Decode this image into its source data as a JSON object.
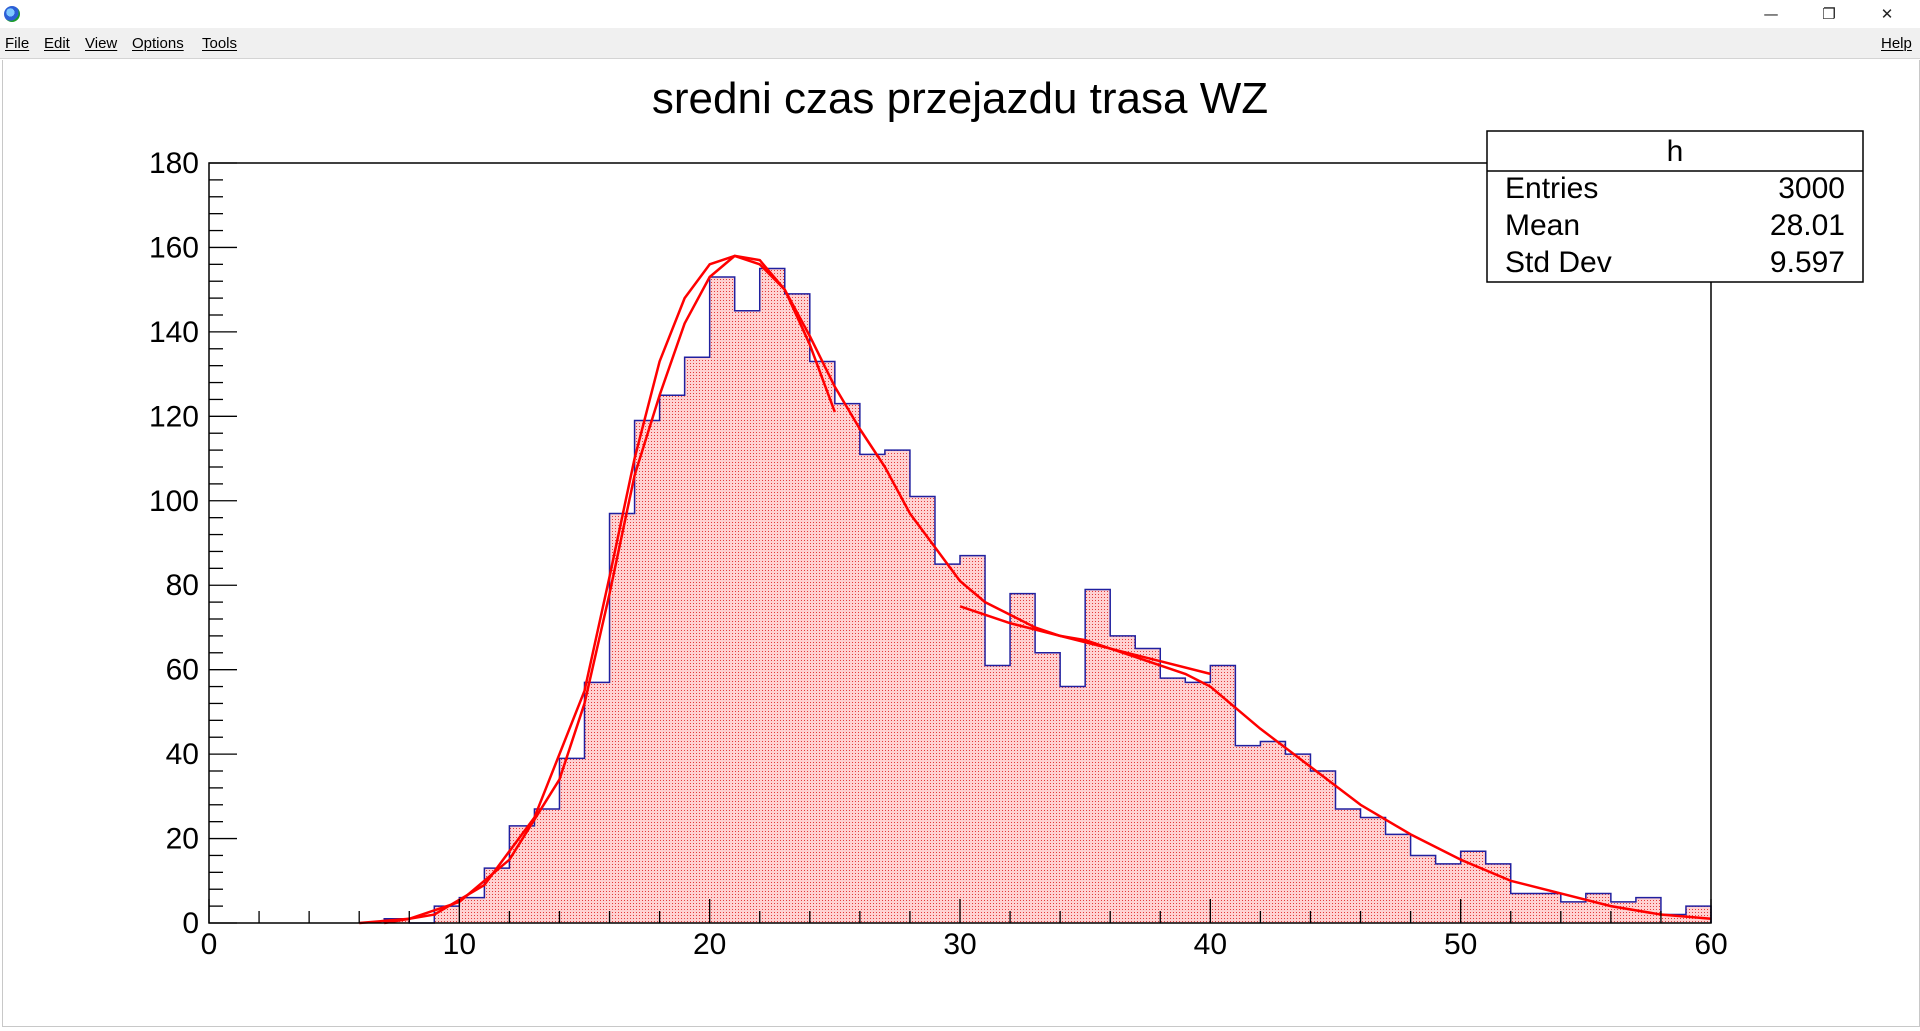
{
  "window": {
    "minimize_label": "—",
    "restore_label": "❐",
    "close_label": "✕"
  },
  "menu": {
    "items": [
      "File",
      "Edit",
      "View",
      "Options",
      "Tools"
    ],
    "help": "Help"
  },
  "stats_box": {
    "name": "h",
    "rows": [
      {
        "label": "Entries",
        "value": "3000"
      },
      {
        "label": "Mean",
        "value": "28.01"
      },
      {
        "label": "Std Dev",
        "value": "9.597"
      }
    ]
  },
  "chart_data": {
    "type": "bar",
    "title": "sredni czas przejazdu trasa WZ",
    "xlabel": "",
    "ylabel": "",
    "xlim": [
      0,
      60
    ],
    "ylim": [
      0,
      180
    ],
    "x_ticks": [
      0,
      10,
      20,
      30,
      40,
      50,
      60
    ],
    "y_ticks": [
      0,
      20,
      40,
      60,
      80,
      100,
      120,
      140,
      160,
      180
    ],
    "bin_width": 1,
    "bins": [
      {
        "x0": 7,
        "value": 1
      },
      {
        "x0": 8,
        "value": 0
      },
      {
        "x0": 9,
        "value": 4
      },
      {
        "x0": 10,
        "value": 6
      },
      {
        "x0": 11,
        "value": 13
      },
      {
        "x0": 12,
        "value": 23
      },
      {
        "x0": 13,
        "value": 27
      },
      {
        "x0": 14,
        "value": 39
      },
      {
        "x0": 15,
        "value": 57
      },
      {
        "x0": 16,
        "value": 97
      },
      {
        "x0": 17,
        "value": 119
      },
      {
        "x0": 18,
        "value": 125
      },
      {
        "x0": 19,
        "value": 134
      },
      {
        "x0": 20,
        "value": 153
      },
      {
        "x0": 21,
        "value": 145
      },
      {
        "x0": 22,
        "value": 155
      },
      {
        "x0": 23,
        "value": 149
      },
      {
        "x0": 24,
        "value": 133
      },
      {
        "x0": 25,
        "value": 123
      },
      {
        "x0": 26,
        "value": 111
      },
      {
        "x0": 27,
        "value": 112
      },
      {
        "x0": 28,
        "value": 101
      },
      {
        "x0": 29,
        "value": 85
      },
      {
        "x0": 30,
        "value": 87
      },
      {
        "x0": 31,
        "value": 61
      },
      {
        "x0": 32,
        "value": 78
      },
      {
        "x0": 33,
        "value": 64
      },
      {
        "x0": 34,
        "value": 56
      },
      {
        "x0": 35,
        "value": 79
      },
      {
        "x0": 36,
        "value": 68
      },
      {
        "x0": 37,
        "value": 65
      },
      {
        "x0": 38,
        "value": 58
      },
      {
        "x0": 39,
        "value": 57
      },
      {
        "x0": 40,
        "value": 61
      },
      {
        "x0": 41,
        "value": 42
      },
      {
        "x0": 42,
        "value": 43
      },
      {
        "x0": 43,
        "value": 40
      },
      {
        "x0": 44,
        "value": 36
      },
      {
        "x0": 45,
        "value": 27
      },
      {
        "x0": 46,
        "value": 25
      },
      {
        "x0": 47,
        "value": 21
      },
      {
        "x0": 48,
        "value": 16
      },
      {
        "x0": 49,
        "value": 14
      },
      {
        "x0": 50,
        "value": 17
      },
      {
        "x0": 51,
        "value": 14
      },
      {
        "x0": 52,
        "value": 7
      },
      {
        "x0": 53,
        "value": 7
      },
      {
        "x0": 54,
        "value": 5
      },
      {
        "x0": 55,
        "value": 7
      },
      {
        "x0": 56,
        "value": 5
      },
      {
        "x0": 57,
        "value": 6
      },
      {
        "x0": 58,
        "value": 2
      },
      {
        "x0": 59,
        "value": 4
      }
    ],
    "fits": [
      {
        "x": [
          6,
          8,
          10,
          12,
          14,
          15,
          16,
          17,
          18,
          19,
          20,
          21,
          22,
          23,
          24,
          25,
          26,
          27,
          28,
          29,
          30,
          31,
          32,
          33,
          34,
          35,
          36,
          37,
          38,
          39,
          40,
          41,
          42,
          44,
          46,
          48,
          50,
          52,
          54,
          56,
          58,
          60
        ],
        "y": [
          0,
          1,
          5,
          15,
          34,
          52,
          78,
          106,
          125,
          142,
          153,
          158,
          156,
          150,
          139,
          127,
          117,
          108,
          97,
          89,
          81,
          76,
          73,
          70,
          68,
          67,
          65,
          63,
          61,
          59,
          56,
          51,
          46,
          37,
          28,
          21,
          15,
          10,
          7,
          4,
          2,
          1
        ]
      },
      {
        "x": [
          7,
          9,
          11,
          13,
          15,
          16,
          17,
          18,
          19,
          20,
          21,
          22,
          23,
          24,
          25
        ],
        "y": [
          0,
          2,
          9,
          25,
          55,
          82,
          110,
          133,
          148,
          156,
          158,
          157,
          150,
          137,
          121
        ]
      },
      {
        "x": [
          30,
          32,
          34,
          36,
          38,
          40
        ],
        "y": [
          75,
          71,
          68,
          65,
          62,
          59
        ]
      }
    ]
  }
}
